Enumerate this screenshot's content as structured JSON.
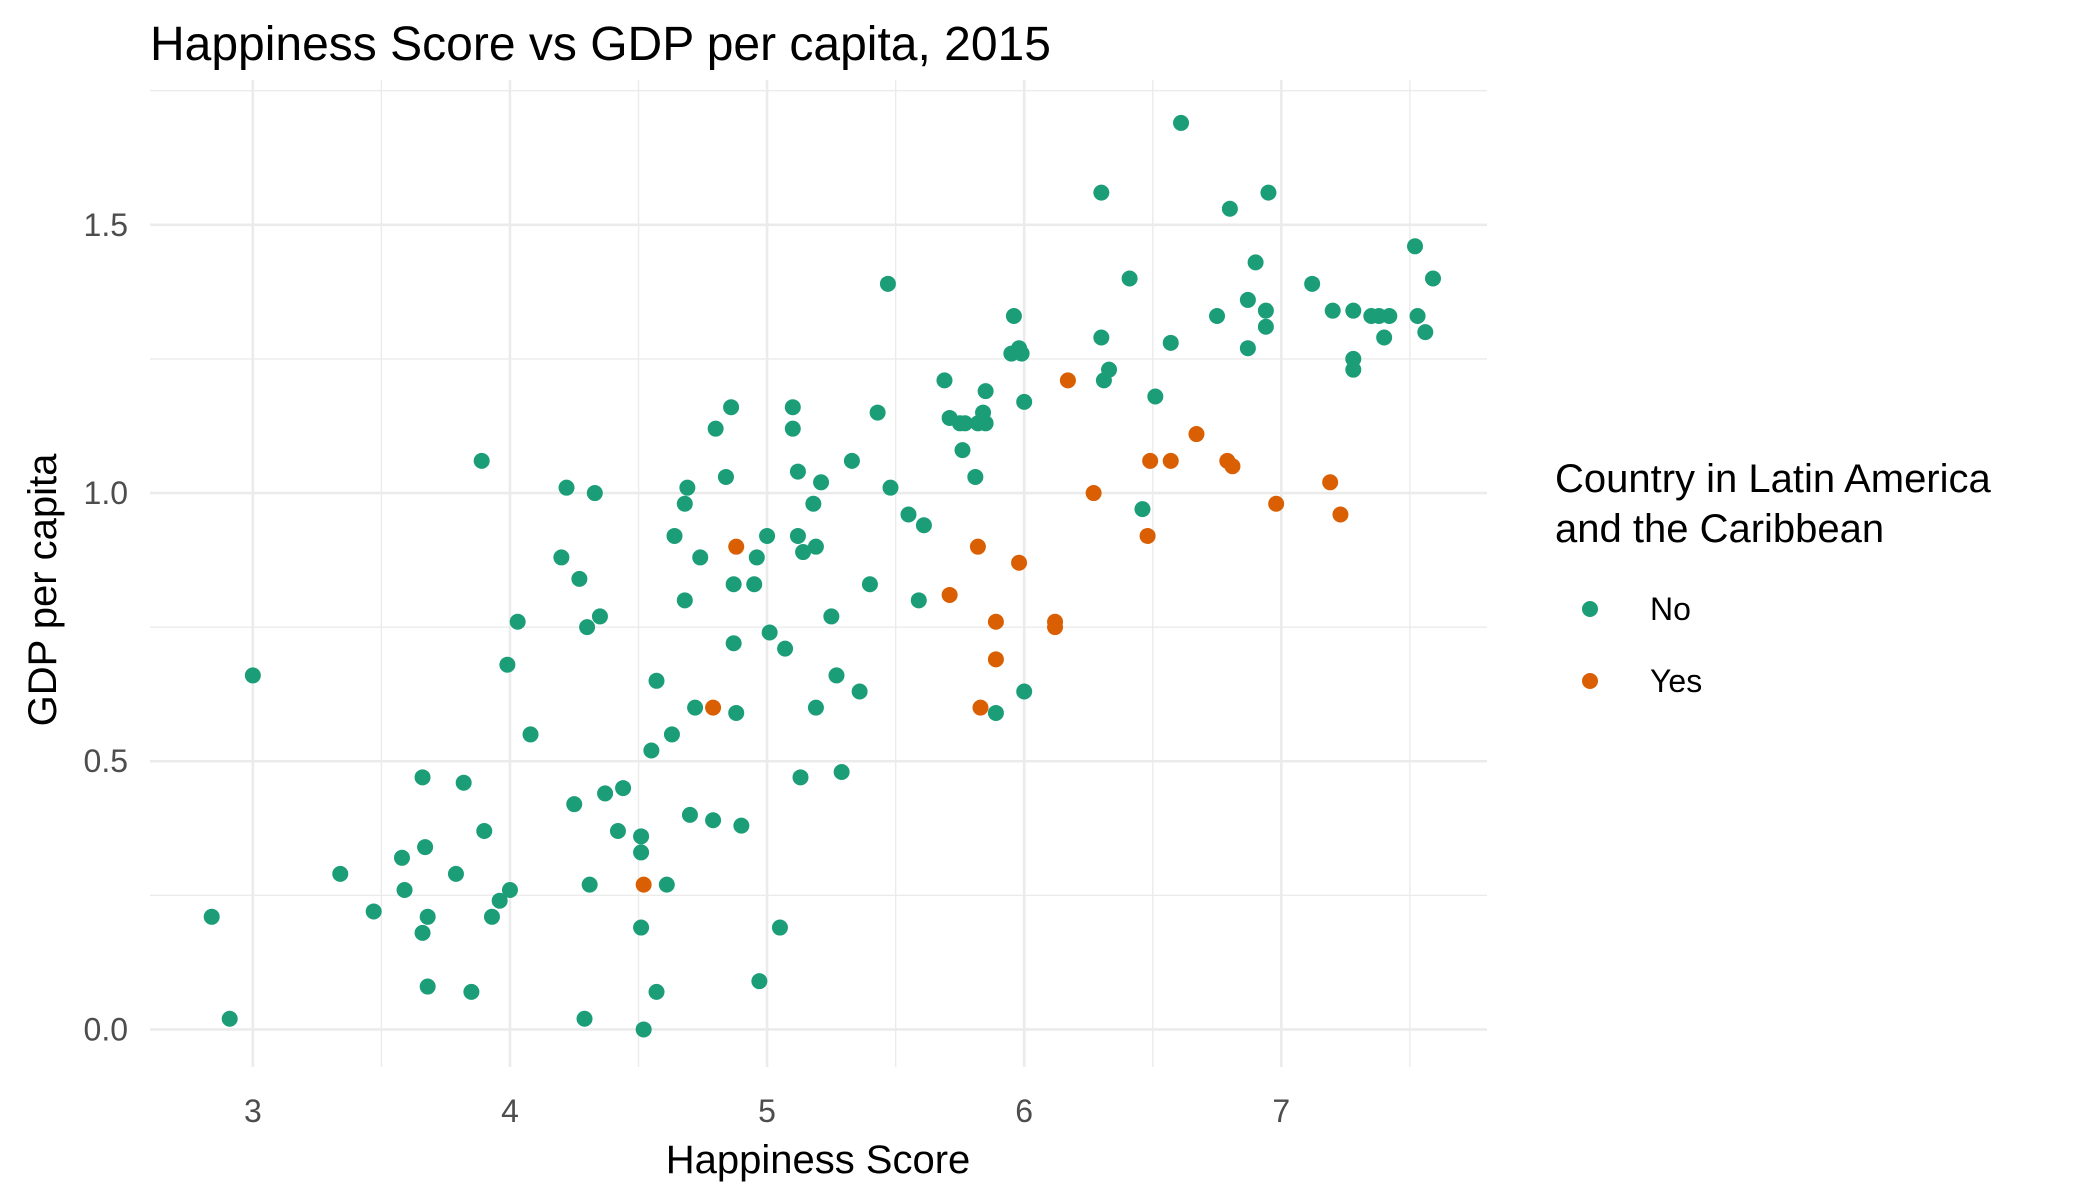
{
  "chart_data": {
    "type": "scatter",
    "title": "Happiness Score vs GDP per capita, 2015",
    "xlabel": "Happiness Score",
    "ylabel": "GDP per capita",
    "xlim": [
      2.6,
      7.8
    ],
    "ylim": [
      -0.07,
      1.77
    ],
    "x_ticks": [
      3,
      4,
      5,
      6,
      7
    ],
    "x_tick_labels": [
      "3",
      "4",
      "5",
      "6",
      "7"
    ],
    "y_ticks": [
      0.0,
      0.5,
      1.0,
      1.5
    ],
    "y_tick_labels": [
      "0.0",
      "0.5",
      "1.0",
      "1.5"
    ],
    "grid": true,
    "legend": {
      "title_lines": [
        "Country in Latin America",
        "and the Caribbean"
      ],
      "placement": "right"
    },
    "series": [
      {
        "name": "No",
        "color": "#1b9e77",
        "points": [
          [
            2.84,
            0.21
          ],
          [
            2.91,
            0.02
          ],
          [
            3.0,
            0.66
          ],
          [
            3.34,
            0.29
          ],
          [
            3.47,
            0.22
          ],
          [
            3.58,
            0.32
          ],
          [
            3.59,
            0.26
          ],
          [
            3.66,
            0.47
          ],
          [
            3.66,
            0.18
          ],
          [
            3.67,
            0.34
          ],
          [
            3.68,
            0.21
          ],
          [
            3.68,
            0.08
          ],
          [
            3.79,
            0.29
          ],
          [
            3.82,
            0.46
          ],
          [
            3.85,
            0.07
          ],
          [
            3.89,
            1.06
          ],
          [
            3.9,
            0.37
          ],
          [
            3.93,
            0.21
          ],
          [
            3.96,
            0.24
          ],
          [
            3.99,
            0.68
          ],
          [
            4.0,
            0.26
          ],
          [
            4.03,
            0.76
          ],
          [
            4.08,
            0.55
          ],
          [
            4.2,
            0.88
          ],
          [
            4.22,
            1.01
          ],
          [
            4.25,
            0.42
          ],
          [
            4.27,
            0.84
          ],
          [
            4.29,
            0.02
          ],
          [
            4.3,
            0.75
          ],
          [
            4.31,
            0.27
          ],
          [
            4.33,
            1.0
          ],
          [
            4.35,
            0.77
          ],
          [
            4.37,
            0.44
          ],
          [
            4.42,
            0.37
          ],
          [
            4.44,
            0.45
          ],
          [
            4.51,
            0.33
          ],
          [
            4.51,
            0.36
          ],
          [
            4.51,
            0.19
          ],
          [
            4.52,
            0.0
          ],
          [
            4.55,
            0.52
          ],
          [
            4.57,
            0.65
          ],
          [
            4.57,
            0.07
          ],
          [
            4.61,
            0.27
          ],
          [
            4.63,
            0.55
          ],
          [
            4.64,
            0.92
          ],
          [
            4.68,
            0.98
          ],
          [
            4.68,
            0.8
          ],
          [
            4.69,
            1.01
          ],
          [
            4.7,
            0.4
          ],
          [
            4.72,
            0.6
          ],
          [
            4.74,
            0.88
          ],
          [
            4.79,
            0.39
          ],
          [
            4.8,
            1.12
          ],
          [
            4.84,
            1.03
          ],
          [
            4.86,
            1.16
          ],
          [
            4.87,
            0.72
          ],
          [
            4.87,
            0.83
          ],
          [
            4.88,
            0.59
          ],
          [
            4.9,
            0.38
          ],
          [
            4.95,
            0.83
          ],
          [
            4.96,
            0.88
          ],
          [
            4.97,
            0.09
          ],
          [
            5.0,
            0.92
          ],
          [
            5.01,
            0.74
          ],
          [
            5.05,
            0.19
          ],
          [
            5.07,
            0.71
          ],
          [
            5.1,
            1.16
          ],
          [
            5.1,
            1.12
          ],
          [
            5.12,
            1.04
          ],
          [
            5.12,
            0.92
          ],
          [
            5.13,
            0.47
          ],
          [
            5.14,
            0.89
          ],
          [
            5.18,
            0.98
          ],
          [
            5.19,
            0.9
          ],
          [
            5.19,
            0.6
          ],
          [
            5.21,
            1.02
          ],
          [
            5.25,
            0.77
          ],
          [
            5.27,
            0.66
          ],
          [
            5.29,
            0.48
          ],
          [
            5.33,
            1.06
          ],
          [
            5.36,
            0.63
          ],
          [
            5.4,
            0.83
          ],
          [
            5.43,
            1.15
          ],
          [
            5.47,
            1.39
          ],
          [
            5.48,
            1.01
          ],
          [
            5.55,
            0.96
          ],
          [
            5.59,
            0.8
          ],
          [
            5.61,
            0.94
          ],
          [
            5.69,
            1.21
          ],
          [
            5.71,
            1.14
          ],
          [
            5.75,
            1.13
          ],
          [
            5.76,
            1.08
          ],
          [
            5.77,
            1.13
          ],
          [
            5.81,
            1.03
          ],
          [
            5.82,
            1.13
          ],
          [
            5.84,
            1.15
          ],
          [
            5.85,
            1.19
          ],
          [
            5.85,
            1.13
          ],
          [
            5.89,
            0.59
          ],
          [
            5.95,
            1.26
          ],
          [
            5.96,
            1.33
          ],
          [
            5.98,
            1.27
          ],
          [
            5.99,
            1.26
          ],
          [
            6.0,
            1.17
          ],
          [
            6.0,
            0.63
          ],
          [
            6.3,
            1.56
          ],
          [
            6.3,
            1.29
          ],
          [
            6.31,
            1.21
          ],
          [
            6.33,
            1.23
          ],
          [
            6.41,
            1.4
          ],
          [
            6.46,
            0.97
          ],
          [
            6.51,
            1.18
          ],
          [
            6.57,
            1.28
          ],
          [
            6.61,
            1.69
          ],
          [
            6.75,
            1.33
          ],
          [
            6.8,
            1.53
          ],
          [
            6.87,
            1.36
          ],
          [
            6.87,
            1.27
          ],
          [
            6.9,
            1.43
          ],
          [
            6.94,
            1.34
          ],
          [
            6.94,
            1.31
          ],
          [
            6.95,
            1.56
          ],
          [
            7.12,
            1.39
          ],
          [
            7.2,
            1.34
          ],
          [
            7.28,
            1.34
          ],
          [
            7.28,
            1.25
          ],
          [
            7.28,
            1.23
          ],
          [
            7.35,
            1.33
          ],
          [
            7.38,
            1.33
          ],
          [
            7.4,
            1.29
          ],
          [
            7.42,
            1.33
          ],
          [
            7.52,
            1.46
          ],
          [
            7.53,
            1.33
          ],
          [
            7.56,
            1.3
          ],
          [
            7.59,
            1.4
          ]
        ]
      },
      {
        "name": "Yes",
        "color": "#d95f02",
        "points": [
          [
            4.52,
            0.27
          ],
          [
            4.79,
            0.6
          ],
          [
            4.88,
            0.9
          ],
          [
            5.71,
            0.81
          ],
          [
            5.82,
            0.9
          ],
          [
            5.83,
            0.6
          ],
          [
            5.89,
            0.76
          ],
          [
            5.89,
            0.69
          ],
          [
            5.98,
            0.87
          ],
          [
            6.12,
            0.75
          ],
          [
            6.12,
            0.76
          ],
          [
            6.17,
            1.21
          ],
          [
            6.27,
            1.0
          ],
          [
            6.48,
            0.92
          ],
          [
            6.49,
            1.06
          ],
          [
            6.57,
            1.06
          ],
          [
            6.67,
            1.11
          ],
          [
            6.79,
            1.06
          ],
          [
            6.81,
            1.05
          ],
          [
            6.98,
            0.98
          ],
          [
            7.19,
            1.02
          ],
          [
            7.23,
            0.96
          ]
        ]
      }
    ]
  }
}
